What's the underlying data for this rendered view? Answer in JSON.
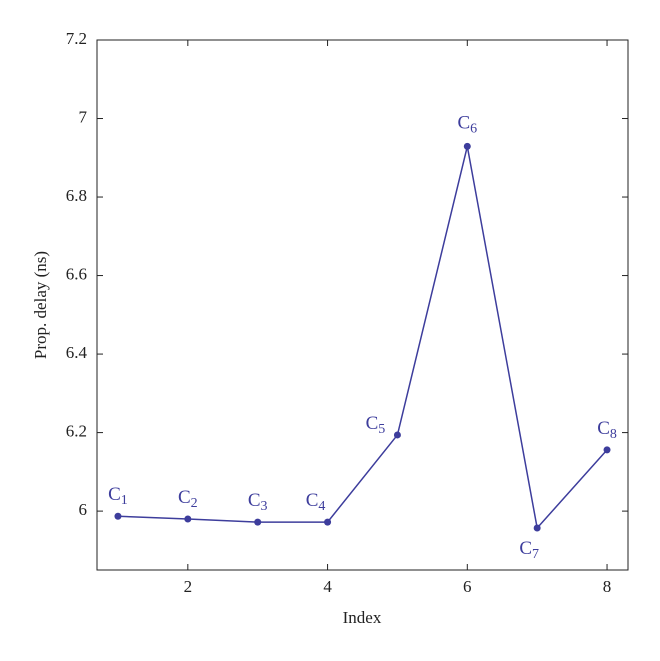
{
  "chart_data": {
    "type": "line",
    "x_label": "Index",
    "y_label": "Prop. delay (ns)",
    "x": [
      1,
      2,
      3,
      4,
      5,
      6,
      7,
      8
    ],
    "values": [
      5.987,
      5.98,
      5.972,
      5.972,
      6.194,
      6.929,
      5.957,
      6.156
    ],
    "point_labels": [
      {
        "base": "C",
        "sub": "1"
      },
      {
        "base": "C",
        "sub": "2"
      },
      {
        "base": "C",
        "sub": "3"
      },
      {
        "base": "C",
        "sub": "4"
      },
      {
        "base": "C",
        "sub": "5"
      },
      {
        "base": "C",
        "sub": "6"
      },
      {
        "base": "C",
        "sub": "7"
      },
      {
        "base": "C",
        "sub": "8"
      }
    ],
    "color": "#3d3d9c",
    "xlim": [
      0.7,
      8.3
    ],
    "ylim": [
      5.85,
      7.2
    ],
    "xticks": [
      2,
      4,
      6,
      8
    ],
    "yticks": [
      6,
      6.2,
      6.4,
      6.6,
      6.8,
      7,
      7.2
    ]
  }
}
